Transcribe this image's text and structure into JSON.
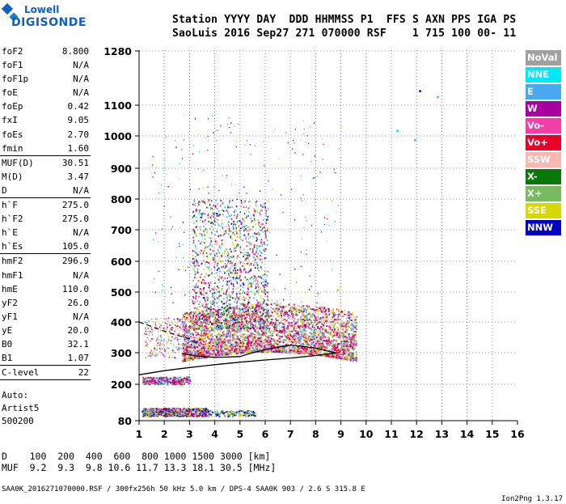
{
  "logo": {
    "line1": "Lowell",
    "line2": "DIGISONDE"
  },
  "header": {
    "line1": "Station YYYY DAY  DDD HHMMSS P1  FFS S AXN PPS IGA PS",
    "line2": "SaoLuis 2016 Sep27 271 070000 RSF    1 715 100 00- 11"
  },
  "params": [
    {
      "label": "foF2",
      "value": "8.800"
    },
    {
      "label": "foF1",
      "value": "N/A"
    },
    {
      "label": "foF1p",
      "value": "N/A"
    },
    {
      "label": "foE",
      "value": "N/A"
    },
    {
      "label": "foEp",
      "value": "0.42"
    },
    {
      "label": "fxI",
      "value": "9.05"
    },
    {
      "label": "foEs",
      "value": "2.70"
    },
    {
      "label": "fmin",
      "value": "1.60"
    },
    {
      "label": "MUF(D)",
      "value": "30.51",
      "sep": true
    },
    {
      "label": "M(D)",
      "value": "3.47"
    },
    {
      "label": "D",
      "value": "N/A"
    },
    {
      "label": "h`F",
      "value": "275.0",
      "sep": true
    },
    {
      "label": "h`F2",
      "value": "275.0"
    },
    {
      "label": "h`E",
      "value": "N/A"
    },
    {
      "label": "h`Es",
      "value": "105.0"
    },
    {
      "label": "hmF2",
      "value": "296.9",
      "sep": true
    },
    {
      "label": "hmF1",
      "value": "N/A"
    },
    {
      "label": "hmE",
      "value": "110.0"
    },
    {
      "label": "yF2",
      "value": "26.0"
    },
    {
      "label": "yF1",
      "value": "N/A"
    },
    {
      "label": "yE",
      "value": "20.0"
    },
    {
      "label": "B0",
      "value": "32.1"
    },
    {
      "label": "B1",
      "value": "1.07"
    },
    {
      "label": "C-level",
      "value": "22",
      "sep": true
    }
  ],
  "info": {
    "line1": "Auto:",
    "line2": "Artist5",
    "line3": "500200"
  },
  "legend": [
    {
      "label": "NoVal",
      "bg": "#a0a0a0",
      "fg": "#ffffff"
    },
    {
      "label": "NNE",
      "bg": "#00e8f8",
      "fg": "#ffffff"
    },
    {
      "label": "E",
      "bg": "#48a8f0",
      "fg": "#ffffff"
    },
    {
      "label": "W",
      "bg": "#a800a0",
      "fg": "#ffffff"
    },
    {
      "label": "Vo-",
      "bg": "#f040a8",
      "fg": "#ffffff"
    },
    {
      "label": "Vo+",
      "bg": "#e80028",
      "fg": "#ffffff"
    },
    {
      "label": "SSW",
      "bg": "#f8b8b0",
      "fg": "#ffffff"
    },
    {
      "label": "X-",
      "bg": "#087808",
      "fg": "#ffffff"
    },
    {
      "label": "X+",
      "bg": "#78b860",
      "fg": "#ffffff"
    },
    {
      "label": "SSE",
      "bg": "#d8d800",
      "fg": "#ffffff"
    },
    {
      "label": "NNW",
      "bg": "#0000c0",
      "fg": "#ffffff"
    }
  ],
  "bottom": {
    "line1": "D    100  200  400  600  800 1000 1500 3000 [km]",
    "line2": "MUF  9.2  9.3  9.8 10.6 11.7 13.3 18.1 30.5 [MHz]"
  },
  "footer": {
    "left": "SAA0K_2016271070000.RSF / 300fx256h 50 kHz 5.0 km / DPS-4 SAA0K 903 / 2.6 S 315.8 E",
    "right": "Ion2Png 1.3.17"
  },
  "chart_data": {
    "type": "scatter",
    "xlim": [
      1,
      16
    ],
    "x_ticks": [
      1,
      2,
      3,
      4,
      5,
      6,
      7,
      8,
      9,
      10,
      11,
      12,
      13,
      14,
      15,
      16
    ],
    "y_ticks": [
      80,
      200,
      300,
      400,
      500,
      600,
      700,
      800,
      900,
      1000,
      1100,
      1280
    ],
    "y_scale": "non-linear (ionogram virtual height)",
    "grid": "dotted",
    "profile_curve": [
      [
        1,
        230
      ],
      [
        2,
        243
      ],
      [
        3,
        253
      ],
      [
        4,
        262
      ],
      [
        5,
        270
      ],
      [
        6,
        277
      ],
      [
        7,
        283
      ],
      [
        8,
        291
      ],
      [
        8.8,
        300
      ]
    ],
    "trace_curve": [
      [
        2.7,
        298
      ],
      [
        3.2,
        290
      ],
      [
        4,
        285
      ],
      [
        5,
        288
      ],
      [
        5.5,
        300
      ],
      [
        6,
        310
      ],
      [
        6.5,
        318
      ],
      [
        7,
        325
      ],
      [
        7.5,
        320
      ],
      [
        8,
        315
      ],
      [
        8.5,
        305
      ],
      [
        8.8,
        300
      ]
    ],
    "dashed_curve": [
      [
        1,
        400
      ],
      [
        2,
        370
      ],
      [
        3,
        345
      ],
      [
        3.3,
        330
      ]
    ],
    "extra_points": [
      {
        "x": 12.1,
        "y": 1150,
        "color": "#0000c0"
      },
      {
        "x": 12.8,
        "y": 1130,
        "color": "#48a8f0"
      },
      {
        "x": 11.2,
        "y": 1020,
        "color": "#00e8f8"
      },
      {
        "x": 11.9,
        "y": 990,
        "color": "#48a8f0"
      }
    ]
  }
}
